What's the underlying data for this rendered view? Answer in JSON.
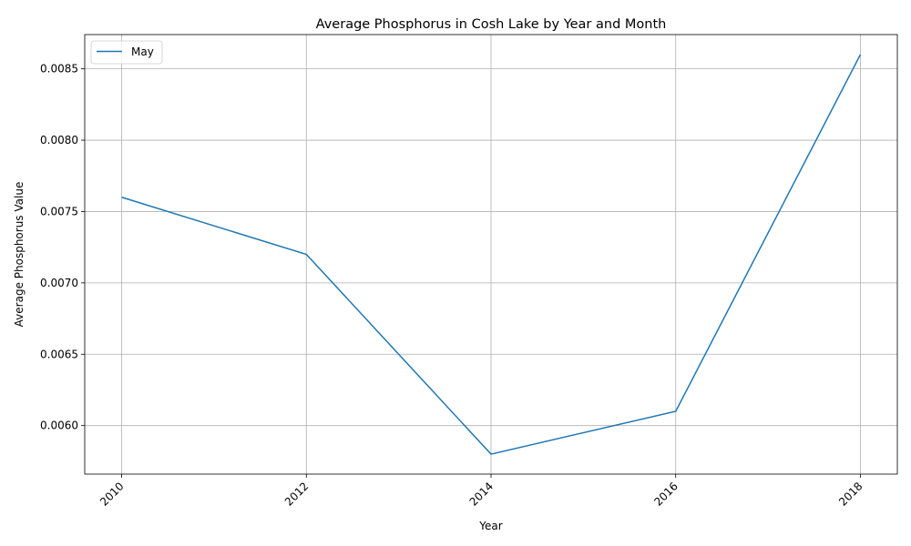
{
  "chart_data": {
    "type": "line",
    "title": "Average Phosphorus in Cosh Lake by Year and Month",
    "xlabel": "Year",
    "ylabel": "Average Phosphorus Value",
    "x": [
      2010,
      2012,
      2014,
      2016,
      2018
    ],
    "series": [
      {
        "name": "May",
        "values": [
          0.0076,
          0.0072,
          0.0058,
          0.0061,
          0.0086
        ],
        "color": "#1f77b4"
      }
    ],
    "xlim": [
      2009.6,
      2018.4
    ],
    "ylim": [
      0.00566,
      0.00874
    ],
    "xticks": [
      "2010",
      "2012",
      "2014",
      "2016",
      "2018"
    ],
    "yticks": [
      "0.0060",
      "0.0065",
      "0.0070",
      "0.0075",
      "0.0080",
      "0.0085"
    ],
    "ytick_values": [
      0.006,
      0.0065,
      0.007,
      0.0075,
      0.008,
      0.0085
    ],
    "grid": true,
    "legend_position": "upper left"
  }
}
